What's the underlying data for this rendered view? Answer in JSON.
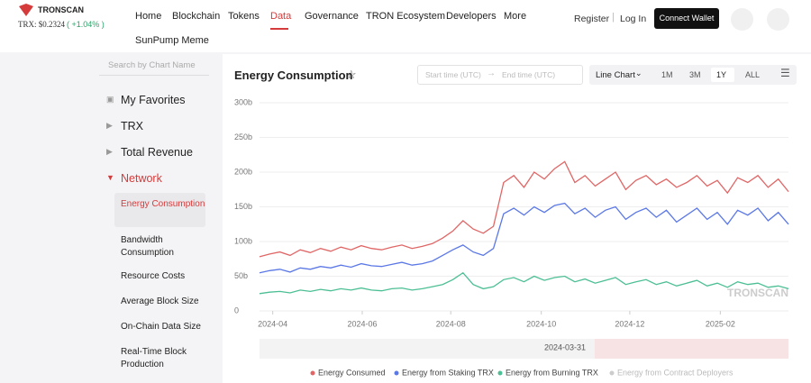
{
  "header": {
    "logo": "TRONSCAN",
    "price": "TRX: $0.2324",
    "change": "( +1.04% )",
    "nav": [
      "Home",
      "Blockchain",
      "Tokens",
      "Data",
      "Governance",
      "TRON Ecosystem",
      "Developers",
      "More"
    ],
    "active_nav": "Data",
    "subnav": "SunPump Meme",
    "register": "Register",
    "login": "Log In",
    "connect": "Connect Wallet"
  },
  "sidebar": {
    "search": "Search by Chart Name",
    "groups": [
      "My Favorites",
      "TRX",
      "Total Revenue",
      "Network"
    ],
    "active_group": "Network",
    "items": [
      "Energy Consumption",
      "Bandwidth Consumption",
      "Resource Costs",
      "Average Block Size",
      "On-Chain Data Size",
      "Real-Time Block Production"
    ],
    "active_item": "Energy Consumption"
  },
  "toolbar": {
    "start": "Start time (UTC)",
    "end": "End time (UTC)",
    "chart_type": "Line Chart",
    "ranges": [
      "1M",
      "3M",
      "1Y",
      "ALL"
    ],
    "active_range": "1Y"
  },
  "chart_data": {
    "type": "line",
    "title": "Energy Consumption",
    "watermark": "TRONSCAN",
    "slider_label": "2024-03-31",
    "xlim": [
      0,
      52
    ],
    "xticks": [
      {
        "value": 1.3,
        "label": "2024-04"
      },
      {
        "value": 10.1,
        "label": "2024-06"
      },
      {
        "value": 18.8,
        "label": "2024-08"
      },
      {
        "value": 27.7,
        "label": "2024-10"
      },
      {
        "value": 36.4,
        "label": "2024-12"
      },
      {
        "value": 45.3,
        "label": "2025-02"
      }
    ],
    "ylim": [
      0,
      300
    ],
    "yticks": [
      0,
      {
        "value": 50,
        "label": "50b"
      },
      {
        "value": 100,
        "label": "100b"
      },
      {
        "value": 150,
        "label": "150b"
      },
      {
        "value": 200,
        "label": "200b"
      },
      {
        "value": 250,
        "label": "250b"
      },
      {
        "value": 300,
        "label": "300b"
      }
    ],
    "grid": true,
    "series": [
      {
        "name": "Energy Consumed",
        "color": "#e06666",
        "values": [
          78,
          82,
          85,
          80,
          88,
          84,
          90,
          86,
          92,
          88,
          94,
          90,
          88,
          92,
          95,
          90,
          93,
          97,
          105,
          115,
          130,
          118,
          112,
          122,
          185,
          195,
          178,
          200,
          190,
          205,
          215,
          185,
          195,
          180,
          190,
          200,
          175,
          188,
          195,
          182,
          190,
          178,
          185,
          195,
          180,
          188,
          170,
          192,
          185,
          195,
          178,
          190,
          172
        ]
      },
      {
        "name": "Energy from Staking TRX",
        "color": "#5b78e6",
        "values": [
          55,
          58,
          60,
          56,
          62,
          60,
          64,
          62,
          66,
          63,
          68,
          65,
          64,
          67,
          70,
          66,
          68,
          72,
          80,
          88,
          95,
          85,
          80,
          90,
          140,
          148,
          138,
          150,
          142,
          152,
          155,
          140,
          148,
          135,
          145,
          150,
          132,
          142,
          148,
          135,
          145,
          128,
          138,
          148,
          132,
          142,
          125,
          145,
          138,
          148,
          130,
          142,
          125
        ]
      },
      {
        "name": "Energy from Burning TRX",
        "color": "#4cbf94",
        "values": [
          25,
          27,
          28,
          26,
          30,
          28,
          31,
          29,
          32,
          30,
          33,
          30,
          29,
          32,
          33,
          30,
          32,
          35,
          38,
          45,
          55,
          38,
          32,
          35,
          45,
          48,
          42,
          50,
          44,
          48,
          50,
          42,
          46,
          40,
          44,
          48,
          38,
          42,
          45,
          38,
          42,
          36,
          40,
          44,
          36,
          40,
          34,
          42,
          38,
          40,
          34,
          36,
          32
        ]
      },
      {
        "name": "Energy from Contract Deployers",
        "color": "#cccccc",
        "visible": false
      }
    ]
  }
}
